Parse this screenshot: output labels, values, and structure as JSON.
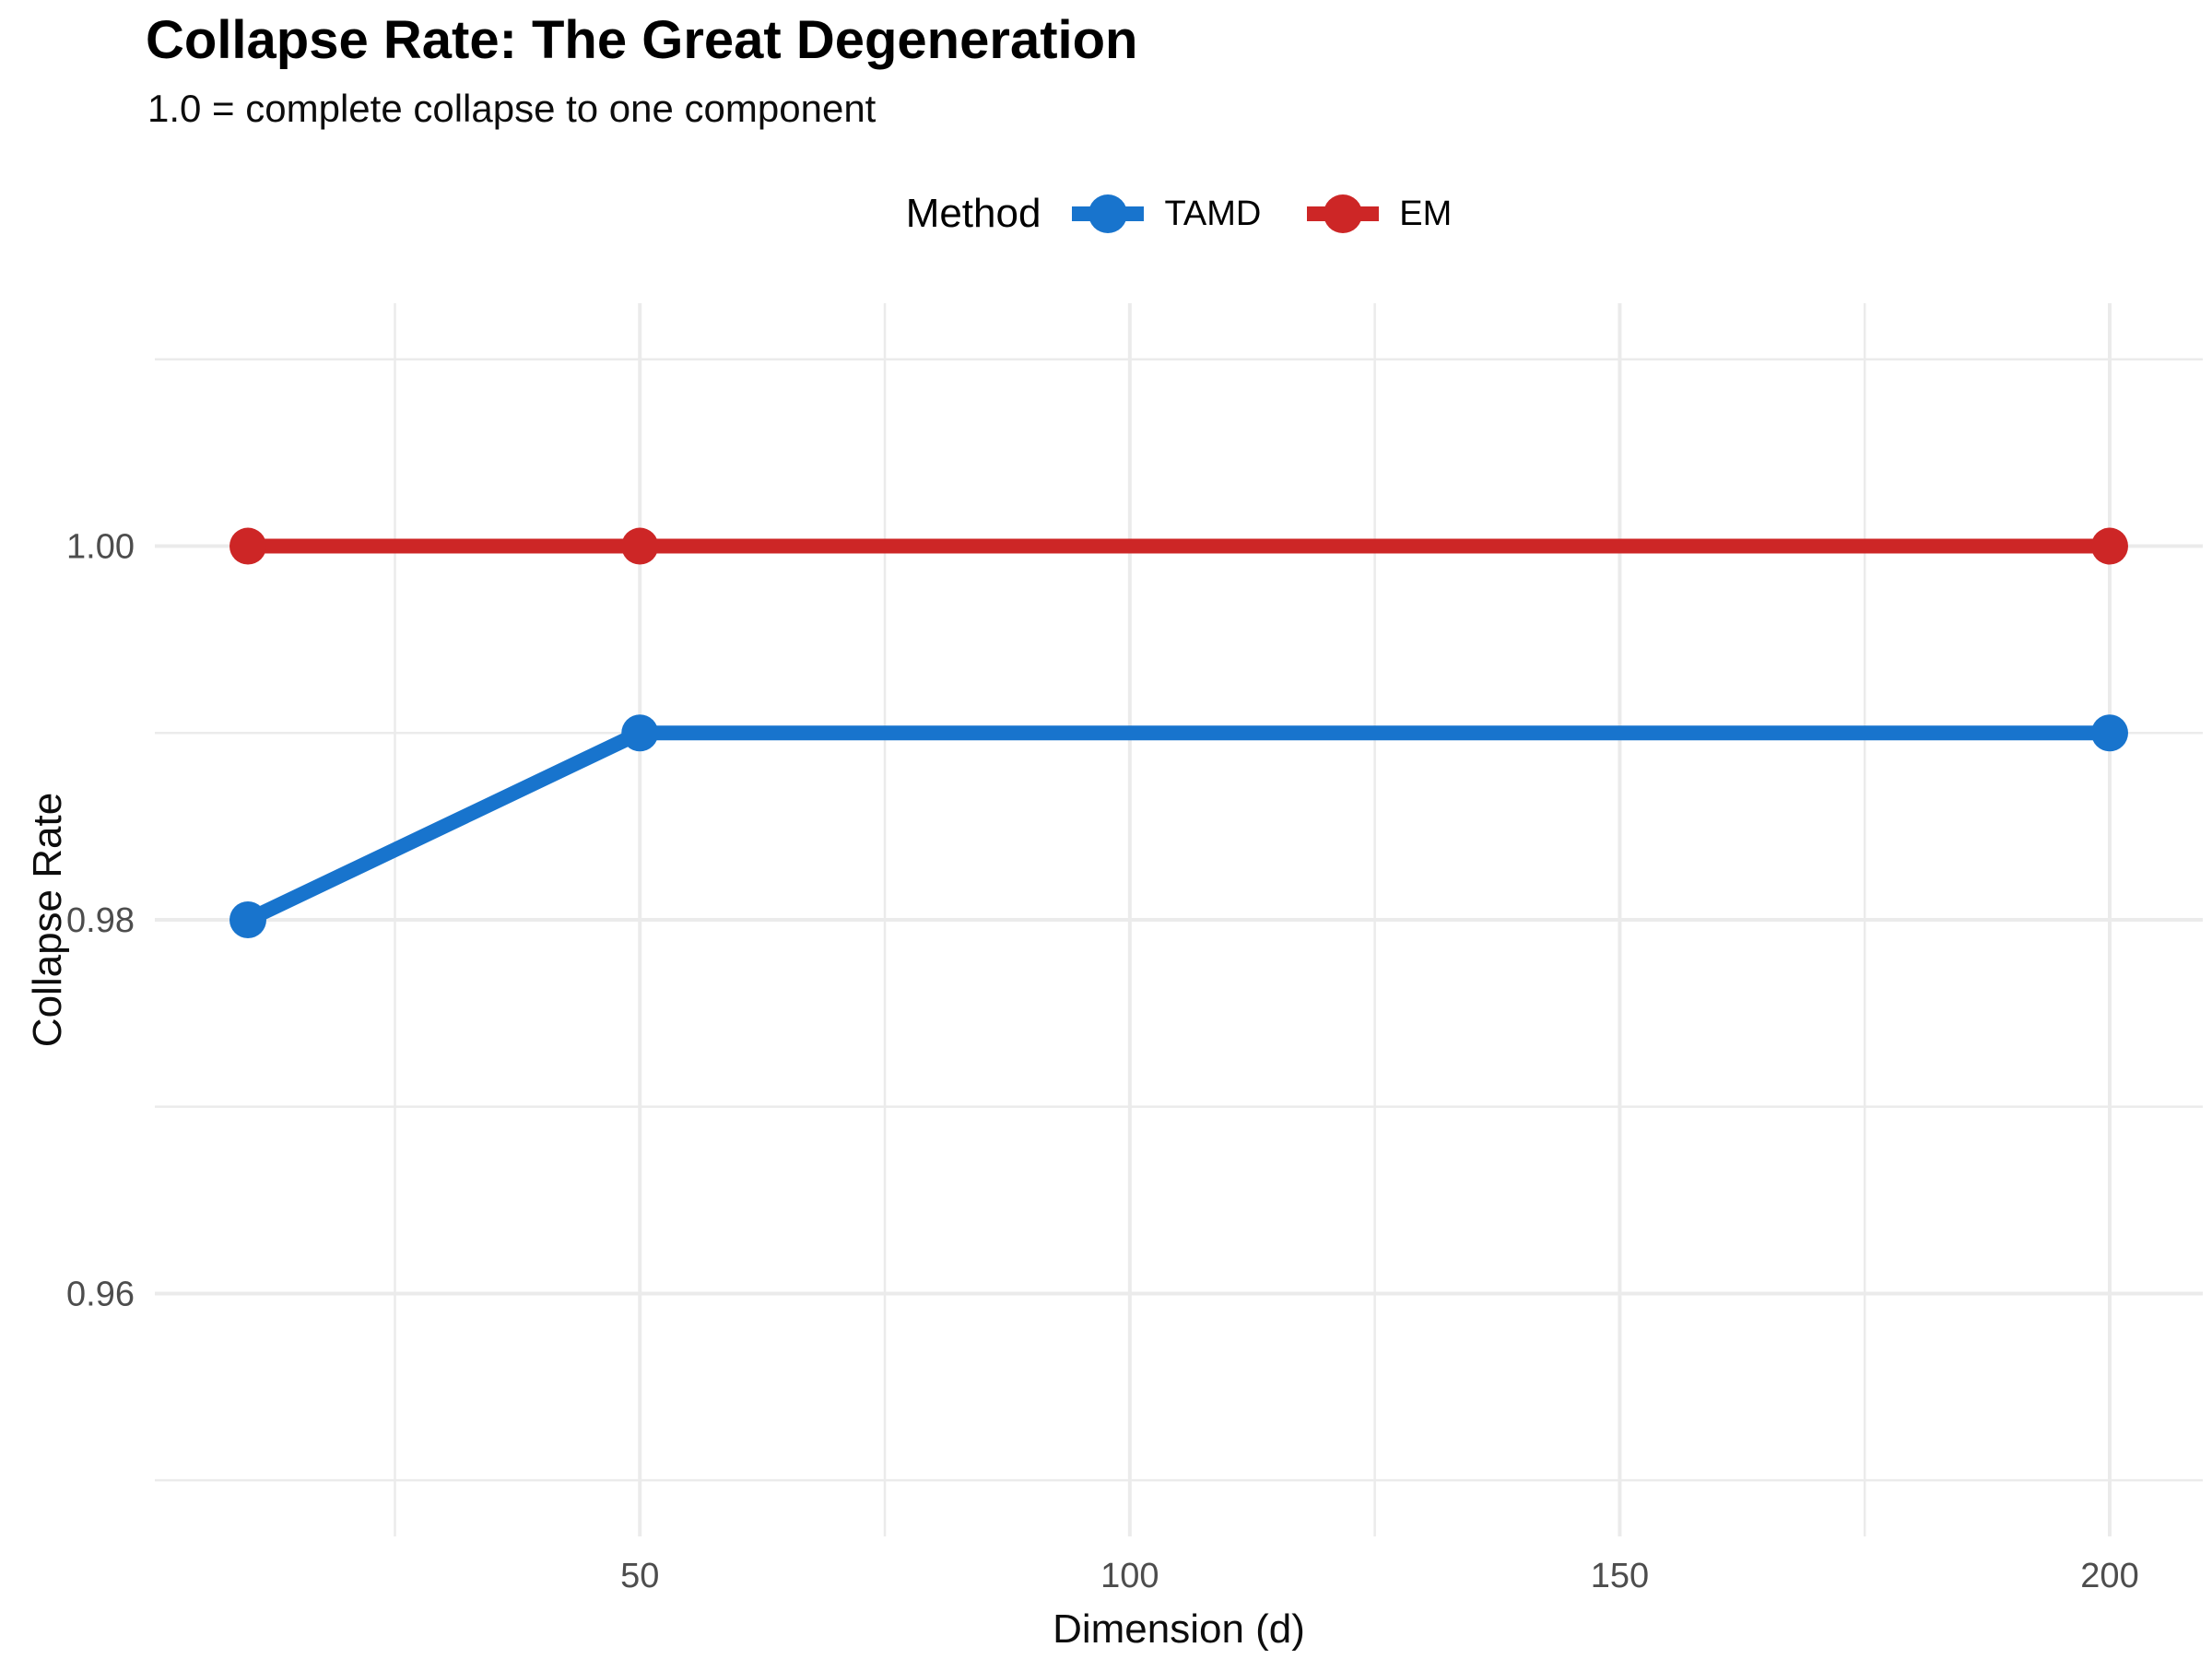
{
  "header": {
    "title": "Collapse Rate: The Great Degeneration",
    "subtitle": "1.0 = complete collapse to one component"
  },
  "legend": {
    "title": "Method",
    "position": "top",
    "items": [
      {
        "label": "TAMD",
        "color": "#1874CD"
      },
      {
        "label": "EM",
        "color": "#CD2626"
      }
    ]
  },
  "chart_data": {
    "type": "line",
    "title": "Collapse Rate: The Great Degeneration",
    "subtitle": "1.0 = complete collapse to one component",
    "xlabel": "Dimension (d)",
    "ylabel": "Collapse Rate",
    "x": [
      10,
      50,
      200
    ],
    "series": [
      {
        "name": "TAMD",
        "color": "#1874CD",
        "values": [
          0.98,
          0.99,
          0.99
        ]
      },
      {
        "name": "EM",
        "color": "#CD2626",
        "values": [
          1.0,
          1.0,
          1.0
        ]
      }
    ],
    "xlim": [
      0.5,
      209.5
    ],
    "ylim": [
      0.947,
      1.013
    ],
    "x_major_ticks": [
      50,
      100,
      150,
      200
    ],
    "x_tick_labels": [
      "50",
      "100",
      "150",
      "200"
    ],
    "x_minor_ticks": [
      25,
      75,
      125,
      175
    ],
    "y_major_ticks": [
      0.96,
      0.98,
      1.0
    ],
    "y_tick_labels": [
      "0.96",
      "0.98",
      "1.00"
    ],
    "y_minor_ticks": [
      0.95,
      0.97,
      0.99,
      1.01
    ],
    "grid": true,
    "legend_position": "top",
    "colors": {
      "grid": "#EBEBEB",
      "tick_text": "#4D4D4D",
      "axis_title_text": "#0D0D0D",
      "background": "#FFFFFF"
    }
  }
}
